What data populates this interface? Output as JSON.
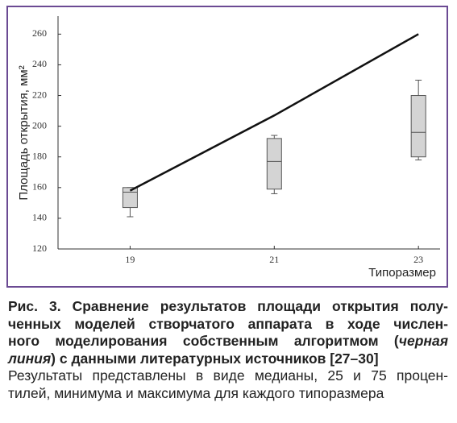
{
  "chart_data": {
    "type": "box-line",
    "ylabel": "Площадь открытия, мм²",
    "xlabel": "Типоразмер",
    "x": [
      19,
      21,
      23
    ],
    "xlim": [
      18,
      23.3
    ],
    "xticks": [
      19,
      21,
      23
    ],
    "ylim": [
      120,
      270
    ],
    "yticks": [
      120,
      140,
      160,
      180,
      200,
      220,
      240,
      260
    ],
    "box": {
      "color": "#d4d4d4",
      "min": [
        141,
        156,
        178
      ],
      "q1": [
        147,
        159,
        180
      ],
      "median": [
        157,
        177,
        196
      ],
      "q3": [
        160,
        192,
        220
      ],
      "max": [
        160,
        194,
        230
      ]
    },
    "line": {
      "color": "#111111",
      "values": [
        158,
        207,
        260
      ]
    }
  },
  "caption": {
    "lines": [
      [
        {
          "text": "Рис. 3. Сравнение результатов площади открытия полу-",
          "style": "bold"
        }
      ],
      [
        {
          "text": "ченных моделей створчатого аппарата в ходе числен-",
          "style": "bold"
        }
      ],
      [
        {
          "text": "ного моделирования собственным алгоритмом (",
          "style": "bold"
        },
        {
          "text": "черная",
          "style": "bold-italic"
        }
      ],
      [
        {
          "text": "линия",
          "style": "bold-italic"
        },
        {
          "text": ") с данными литературных источников [27–30]",
          "style": "bold"
        }
      ],
      [
        {
          "text": "Результаты представлены в виде медианы, 25 и 75 процен-",
          "style": "regular"
        }
      ],
      [
        {
          "text": "тилей, минимума и максимума для каждого типоразмера",
          "style": "regular"
        }
      ]
    ]
  }
}
